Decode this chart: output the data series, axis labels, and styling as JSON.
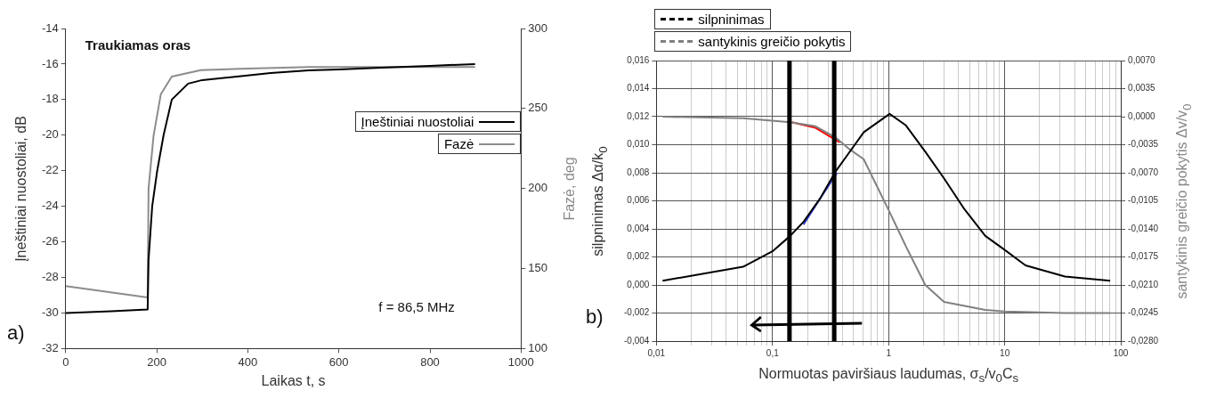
{
  "chart_data": [
    {
      "type": "line",
      "xlabel": "Laikas t, s",
      "ylabel": "Įneštiniai nuostoliai, dB",
      "y2label": "Fazė, deg",
      "annotations": [
        "Traukiamas oras",
        "f = 86,5 MHz",
        "a)"
      ],
      "series": [
        {
          "name": "Įneštiniai nuostoliai",
          "color": "#000000",
          "x": [
            0,
            100,
            180,
            182,
            190,
            201,
            215,
            233,
            269,
            300,
            376,
            450,
            534,
            600,
            693,
            800,
            899
          ],
          "values": [
            -30.0,
            -29.9,
            -29.8,
            -27,
            -24,
            -22,
            -20,
            -18,
            -17.1,
            -16.9,
            -16.7,
            -16.5,
            -16.35,
            -16.3,
            -16.2,
            -16.1,
            -16.0
          ]
        },
        {
          "name": "Fazė",
          "color": "#8c8c8c",
          "axis": "y2",
          "x": [
            0,
            180,
            182,
            193,
            209,
            233,
            297,
            400,
            534,
            700,
            899
          ],
          "values": [
            139,
            132,
            200,
            233,
            259,
            270,
            274,
            275,
            276,
            276,
            276
          ]
        }
      ],
      "xlim": [
        0,
        1000
      ],
      "xticks": [
        0,
        200,
        400,
        600,
        800,
        1000
      ],
      "ylim": [
        -32,
        -14
      ],
      "yticks": [
        -32,
        -30,
        -28,
        -26,
        -24,
        -22,
        -20,
        -18,
        -16,
        -14
      ],
      "y2lim": [
        100,
        300
      ],
      "y2ticks": [
        100,
        150,
        200,
        250,
        300
      ],
      "legend": "right",
      "marker": "none",
      "line_style": "solid"
    },
    {
      "type": "line",
      "xlabel": "Normuotas paviršiaus laudumas, σ$_{s}$/v$_{0}$C$_{s}$",
      "ylabel": "silpninimas Δα/k$_{0}$",
      "y2label": "santykinis greičio pokytis Δv/v$_{0}$",
      "annotations": [
        "b)"
      ],
      "series": [
        {
          "name": "silpninimas",
          "color": "#000000",
          "x": [
            0.0113,
            0.0558,
            0.1,
            0.142,
            0.185,
            0.254,
            0.35,
            0.445,
            0.612,
            1.02,
            1.4,
            2.07,
            3.0,
            4.5,
            6.8,
            10,
            15.1,
            33,
            81
          ],
          "values": [
            0.0003,
            0.0013,
            0.0024,
            0.0035,
            0.0045,
            0.0061,
            0.0081,
            0.0093,
            0.0109,
            0.0122,
            0.0114,
            0.0095,
            0.0076,
            0.0054,
            0.0035,
            0.0025,
            0.0014,
            0.0006,
            0.0003
          ]
        },
        {
          "name": "santykinis greičio pokytis",
          "color": "#808080",
          "axis": "y2",
          "x": [
            0.0113,
            0.0559,
            0.142,
            0.235,
            0.35,
            0.445,
            0.61,
            1.02,
            1.4,
            2.07,
            3.0,
            6.8,
            10,
            33,
            81
          ],
          "values": [
            0.0,
            -0.0002,
            -0.0007,
            -0.0012,
            -0.0026,
            -0.0039,
            -0.0053,
            -0.0119,
            -0.0161,
            -0.021,
            -0.0231,
            -0.0241,
            -0.0243,
            -0.0245,
            -0.0245
          ]
        },
        {
          "color": "#ff0000",
          "axis": "y2",
          "x": [
            0.147,
            0.235,
            0.38
          ],
          "values": [
            -0.0007,
            -0.0014,
            -0.0032
          ]
        },
        {
          "color": "#3344dd",
          "x": [
            0.185,
            0.25,
            0.36
          ],
          "values": [
            0.0043,
            0.006,
            0.008
          ]
        }
      ],
      "ref_lines": [
        {
          "axis": "x",
          "value": 0.14,
          "color": "#000000"
        },
        {
          "axis": "x",
          "value": 0.34,
          "color": "#000000"
        }
      ],
      "log": "x",
      "xlim": [
        0.01,
        100
      ],
      "xticks": [
        {
          "value": 0.01,
          "label": "0,01"
        },
        {
          "value": 0.02,
          "label": null
        },
        {
          "value": 0.03,
          "label": null
        },
        {
          "value": 0.04,
          "label": null
        },
        {
          "value": 0.05,
          "label": null
        },
        {
          "value": 0.06,
          "label": null
        },
        {
          "value": 0.07,
          "label": null
        },
        {
          "value": 0.08,
          "label": null
        },
        {
          "value": 0.09,
          "label": null
        },
        {
          "value": 0.1,
          "label": "0,1"
        },
        {
          "value": 0.2,
          "label": null
        },
        {
          "value": 0.3,
          "label": null
        },
        {
          "value": 0.4,
          "label": null
        },
        {
          "value": 0.5,
          "label": null
        },
        {
          "value": 0.6,
          "label": null
        },
        {
          "value": 0.7,
          "label": null
        },
        {
          "value": 0.8,
          "label": null
        },
        {
          "value": 0.9,
          "label": null
        },
        1,
        {
          "value": 2,
          "label": null
        },
        {
          "value": 3,
          "label": null
        },
        {
          "value": 4,
          "label": null
        },
        {
          "value": 5,
          "label": null
        },
        {
          "value": 6,
          "label": null
        },
        {
          "value": 7,
          "label": null
        },
        {
          "value": 8,
          "label": null
        },
        {
          "value": 9,
          "label": null
        },
        10,
        {
          "value": 20,
          "label": null
        },
        {
          "value": 30,
          "label": null
        },
        {
          "value": 40,
          "label": null
        },
        {
          "value": 50,
          "label": null
        },
        {
          "value": 60,
          "label": null
        },
        {
          "value": 70,
          "label": null
        },
        {
          "value": 80,
          "label": null
        },
        {
          "value": 90,
          "label": null
        },
        100
      ],
      "ylim": [
        -0.004,
        0.016
      ],
      "yticks": [
        {
          "value": -0.004,
          "label": "-0,004"
        },
        {
          "value": -0.002,
          "label": "-0,002"
        },
        {
          "value": 0,
          "label": "0,000"
        },
        {
          "value": 0.002,
          "label": "0,002"
        },
        {
          "value": 0.004,
          "label": "0,004"
        },
        {
          "value": 0.006,
          "label": "0,006"
        },
        {
          "value": 0.008,
          "label": "0,008"
        },
        {
          "value": 0.01,
          "label": "0,010"
        },
        {
          "value": 0.012,
          "label": "0,012"
        },
        {
          "value": 0.014,
          "label": "0,014"
        },
        {
          "value": 0.016,
          "label": "0,016"
        }
      ],
      "y2lim": [
        -0.028,
        0.007
      ],
      "y2ticks": [
        {
          "value": -0.028,
          "label": "-0,0280"
        },
        {
          "value": -0.0245,
          "label": "-0,0245"
        },
        {
          "value": -0.021,
          "label": "-0,0210"
        },
        {
          "value": -0.0175,
          "label": "-0,0175"
        },
        {
          "value": -0.014,
          "label": "-0,0140"
        },
        {
          "value": -0.0105,
          "label": "-0,0105"
        },
        {
          "value": -0.007,
          "label": "-0,0070"
        },
        {
          "value": -0.0035,
          "label": "-0,0035"
        },
        {
          "value": 0,
          "label": "0,0000"
        },
        {
          "value": 0.0035,
          "label": "0,0035"
        },
        {
          "value": 0.007,
          "label": "0,0070"
        }
      ],
      "grid": true,
      "legend": "top left",
      "marker": "none",
      "line_style": "solid"
    }
  ]
}
